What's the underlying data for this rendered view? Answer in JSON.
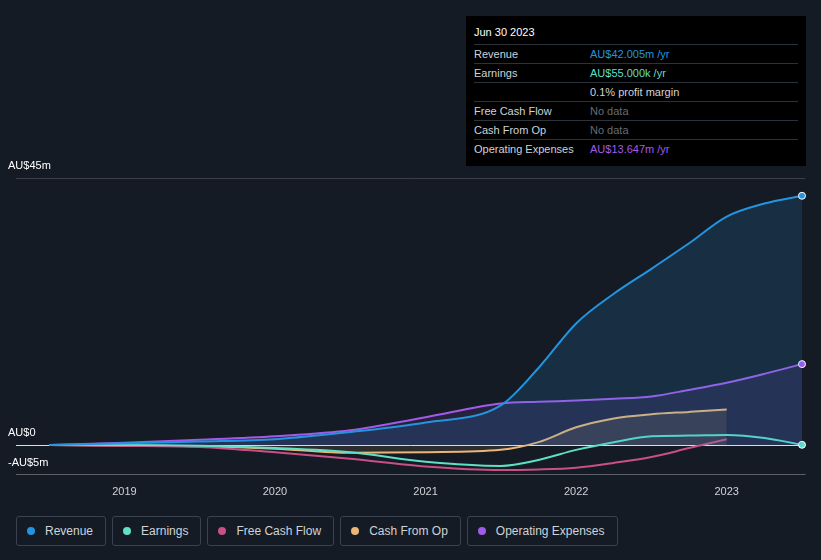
{
  "chart_data": {
    "type": "line",
    "x": [
      2018.5,
      2019,
      2019.5,
      2020,
      2020.5,
      2021,
      2021.5,
      2021.75,
      2022,
      2022.25,
      2022.5,
      2022.75,
      2023,
      2023.25,
      2023.5
    ],
    "series": [
      {
        "name": "Revenue",
        "color": "#2394df",
        "values": [
          0,
          0.3,
          0.6,
          1.0,
          2.2,
          3.8,
          6.7,
          13,
          20.5,
          25.5,
          29.7,
          34,
          38.5,
          40.7,
          42.005
        ]
      },
      {
        "name": "Earnings",
        "color": "#5fdfc6",
        "values": [
          0,
          0,
          -0.1,
          -0.5,
          -1.2,
          -2.8,
          -3.5,
          -2.5,
          -0.8,
          0.5,
          1.5,
          1.6,
          1.7,
          1.2,
          0.055
        ]
      },
      {
        "name": "Free Cash Flow",
        "color": "#c94f86",
        "values": [
          0,
          -0.1,
          -0.3,
          -1.2,
          -2.3,
          -3.6,
          -4.2,
          -4.1,
          -3.8,
          -3,
          -2,
          -0.5,
          1,
          null,
          null
        ]
      },
      {
        "name": "Cash From Op",
        "color": "#eab676",
        "values": [
          0,
          -0.1,
          -0.2,
          -0.6,
          -1.3,
          -1.2,
          -0.8,
          0.5,
          3,
          4.5,
          5.2,
          5.6,
          6,
          null,
          null
        ]
      },
      {
        "name": "Operating Expenses",
        "color": "#a25ae8",
        "values": [
          0,
          0.4,
          0.9,
          1.5,
          2.5,
          4.7,
          7,
          7.3,
          7.5,
          7.8,
          8.2,
          9.3,
          10.5,
          12,
          13.647
        ]
      }
    ],
    "xlim": [
      2018.28,
      2023.52
    ],
    "xticks": [
      2019,
      2020,
      2021,
      2022,
      2023
    ],
    "ylim": [
      -5,
      45
    ],
    "yticks": [
      {
        "value": -5,
        "label": "-AU$5m"
      },
      {
        "value": 0,
        "label": "AU$0"
      },
      {
        "value": 45,
        "label": "AU$45m"
      }
    ],
    "grid": true,
    "legend": "bottom",
    "info_box": {
      "title": "Jun 30 2023",
      "rows": [
        {
          "label": "Revenue",
          "value": "AU$42.005m /yr",
          "color": "#2394df"
        },
        {
          "label": "Earnings",
          "value": "AU$55.000k /yr",
          "color": "#5fdfc6"
        },
        {
          "value": "0.1% profit margin",
          "color": "#cfd3d8"
        },
        {
          "label": "Free Cash Flow",
          "value": "No data",
          "color": "#666c75"
        },
        {
          "label": "Cash From Op",
          "value": "No data",
          "color": "#666c75"
        },
        {
          "label": "Operating Expenses",
          "value": "AU$13.647m /yr",
          "color": "#a25ae8"
        }
      ]
    }
  }
}
